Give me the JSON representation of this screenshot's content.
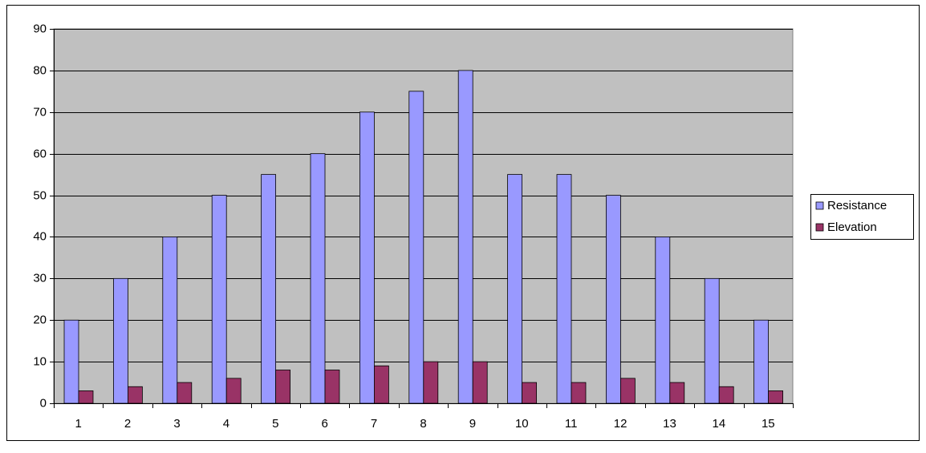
{
  "chart_data": {
    "type": "bar",
    "categories": [
      "1",
      "2",
      "3",
      "4",
      "5",
      "6",
      "7",
      "8",
      "9",
      "10",
      "11",
      "12",
      "13",
      "14",
      "15"
    ],
    "series": [
      {
        "name": "Resistance",
        "color": "#9999ff",
        "values": [
          20,
          30,
          40,
          50,
          55,
          60,
          70,
          75,
          80,
          55,
          55,
          50,
          40,
          30,
          20
        ]
      },
      {
        "name": "Elevation",
        "color": "#993366",
        "values": [
          3,
          4,
          5,
          6,
          8,
          8,
          9,
          10,
          10,
          5,
          5,
          6,
          5,
          4,
          3
        ]
      }
    ],
    "ylim": [
      0,
      90
    ],
    "yticks": [
      0,
      10,
      20,
      30,
      40,
      50,
      60,
      70,
      80,
      90
    ],
    "grid": true,
    "legend": "right",
    "plot_background": "#c0c0c0"
  }
}
